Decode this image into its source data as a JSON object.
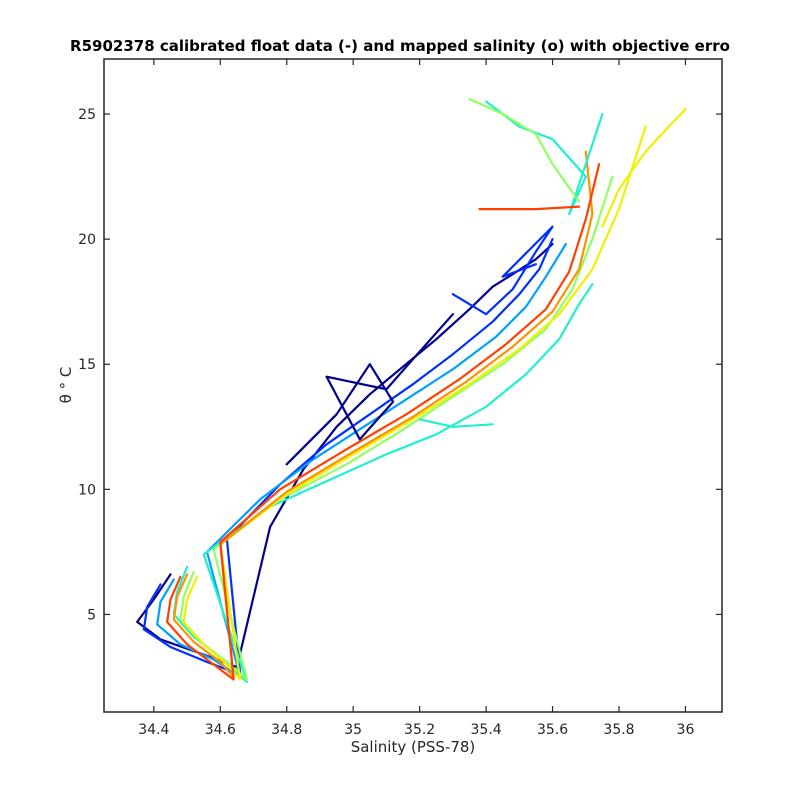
{
  "chart_data": {
    "type": "line",
    "title": "R5902378 calibrated float data (-) and mapped salinity (o) with objective erro",
    "xlabel": "Salinity (PSS-78)",
    "ylabel": "θ ° C",
    "xlim": [
      34.25,
      36.11
    ],
    "ylim": [
      1.1,
      27.2
    ],
    "xticks": [
      "34.4",
      "34.6",
      "34.8",
      "35",
      "35.2",
      "35.4",
      "35.6",
      "35.8",
      "36"
    ],
    "yticks": [
      "5",
      "10",
      "15",
      "20",
      "25"
    ],
    "grid": false,
    "colormap": "jet",
    "colors": [
      "#00008f",
      "#0030ff",
      "#00a0ff",
      "#20f0d0",
      "#90ff60",
      "#f0f000",
      "#ff9000",
      "#ff4000"
    ],
    "series": [
      {
        "color": "#00008f",
        "x": [
          34.45,
          34.4,
          34.35,
          34.42,
          34.55,
          34.65,
          34.75,
          34.85,
          34.95,
          35.05,
          35.15,
          35.25,
          35.35,
          35.42,
          35.48,
          35.55,
          35.6
        ],
        "y": [
          6.6,
          5.6,
          4.7,
          4.0,
          3.4,
          2.9,
          8.5,
          10.8,
          12.5,
          13.8,
          14.9,
          16.0,
          17.2,
          18.1,
          18.6,
          19.2,
          19.8
        ]
      },
      {
        "color": "#0030ff",
        "x": [
          34.42,
          34.38,
          34.37,
          34.45,
          34.56,
          34.66,
          34.62,
          34.78,
          34.92,
          35.05,
          35.18,
          35.3,
          35.42,
          35.5,
          35.56,
          35.6
        ],
        "y": [
          6.2,
          5.3,
          4.4,
          3.7,
          3.1,
          2.6,
          8.0,
          10.2,
          11.8,
          13.0,
          14.2,
          15.4,
          16.7,
          17.8,
          18.8,
          20.0
        ]
      },
      {
        "color": "#00a0ff",
        "x": [
          34.46,
          34.42,
          34.41,
          34.48,
          34.58,
          34.66,
          34.56,
          34.72,
          34.88,
          35.02,
          35.16,
          35.3,
          35.43,
          35.52,
          35.58,
          35.64
        ],
        "y": [
          6.4,
          5.5,
          4.6,
          3.8,
          3.2,
          2.5,
          7.5,
          9.6,
          11.2,
          12.4,
          13.6,
          14.8,
          16.1,
          17.3,
          18.5,
          19.8
        ]
      },
      {
        "color": "#20f0d0",
        "x": [
          34.5,
          34.47,
          34.46,
          34.52,
          34.6,
          34.68,
          34.55,
          34.75,
          34.95,
          35.1,
          35.25,
          35.4,
          35.52,
          35.62,
          35.68,
          35.72
        ],
        "y": [
          6.9,
          5.9,
          5.0,
          4.1,
          3.3,
          2.3,
          7.4,
          9.3,
          10.5,
          11.4,
          12.2,
          13.3,
          14.6,
          16.0,
          17.4,
          18.2
        ]
      },
      {
        "color": "#90ff60",
        "x": [
          34.52,
          34.49,
          34.48,
          34.54,
          34.62,
          34.68,
          34.58,
          34.78,
          34.98,
          35.14,
          35.3,
          35.45,
          35.58,
          35.66,
          35.72,
          35.78
        ],
        "y": [
          6.7,
          5.7,
          4.8,
          3.9,
          3.1,
          2.4,
          7.6,
          9.6,
          11.0,
          12.3,
          13.7,
          15.0,
          16.4,
          18.0,
          20.0,
          22.5
        ]
      },
      {
        "color": "#f0f000",
        "x": [
          34.53,
          34.5,
          34.49,
          34.55,
          34.62,
          34.66,
          34.6,
          34.8,
          35.0,
          35.18,
          35.35,
          35.5,
          35.62,
          35.72,
          35.8,
          35.88
        ],
        "y": [
          6.5,
          5.6,
          4.7,
          3.8,
          3.0,
          2.4,
          7.8,
          9.8,
          11.4,
          12.8,
          14.2,
          15.6,
          17.0,
          18.8,
          21.2,
          24.5
        ]
      },
      {
        "color": "#ff9000",
        "x": [
          34.5,
          34.47,
          34.46,
          34.52,
          34.6,
          34.64,
          34.6,
          34.8,
          35.0,
          35.18,
          35.34,
          35.48,
          35.6,
          35.68,
          35.72,
          35.7
        ],
        "y": [
          6.6,
          5.7,
          4.8,
          3.9,
          3.1,
          2.5,
          7.8,
          9.9,
          11.5,
          12.9,
          14.3,
          15.7,
          17.1,
          18.8,
          21.0,
          23.5
        ]
      },
      {
        "color": "#ff4000",
        "x": [
          34.48,
          34.45,
          34.44,
          34.5,
          34.58,
          34.64,
          34.6,
          34.78,
          34.98,
          35.16,
          35.32,
          35.46,
          35.58,
          35.65,
          35.7,
          35.74
        ],
        "y": [
          6.5,
          5.6,
          4.7,
          3.8,
          3.0,
          2.4,
          7.9,
          10.0,
          11.6,
          13.0,
          14.4,
          15.8,
          17.2,
          18.7,
          20.8,
          23.0
        ]
      },
      {
        "color": "#00008f",
        "x": [
          34.8,
          34.95,
          35.05,
          35.12,
          35.02,
          34.92,
          35.1,
          35.2,
          35.3
        ],
        "y": [
          11.0,
          13.0,
          15.0,
          13.5,
          12.0,
          14.5,
          14.0,
          15.5,
          17.0
        ]
      },
      {
        "color": "#0030ff",
        "x": [
          35.3,
          35.4,
          35.48,
          35.55,
          35.6,
          35.45,
          35.55
        ],
        "y": [
          17.8,
          17.0,
          18.0,
          19.5,
          20.5,
          18.5,
          19.0
        ]
      },
      {
        "color": "#20f0d0",
        "x": [
          35.4,
          35.5,
          35.6,
          35.7,
          35.65,
          35.75
        ],
        "y": [
          25.5,
          24.5,
          24.0,
          22.5,
          21.0,
          25.0
        ]
      },
      {
        "color": "#90ff60",
        "x": [
          35.35,
          35.45,
          35.55,
          35.6,
          35.68
        ],
        "y": [
          25.6,
          25.0,
          24.2,
          23.0,
          21.5
        ]
      },
      {
        "color": "#f0f000",
        "x": [
          35.75,
          35.8,
          35.88,
          35.95,
          36.0
        ],
        "y": [
          20.5,
          22.0,
          23.5,
          24.5,
          25.2
        ]
      },
      {
        "color": "#ff4000",
        "x": [
          35.38,
          35.55,
          35.68
        ],
        "y": [
          21.2,
          21.2,
          21.3
        ]
      },
      {
        "color": "#20f0d0",
        "x": [
          35.2,
          35.3,
          35.42
        ],
        "y": [
          12.8,
          12.5,
          12.6
        ]
      }
    ]
  }
}
